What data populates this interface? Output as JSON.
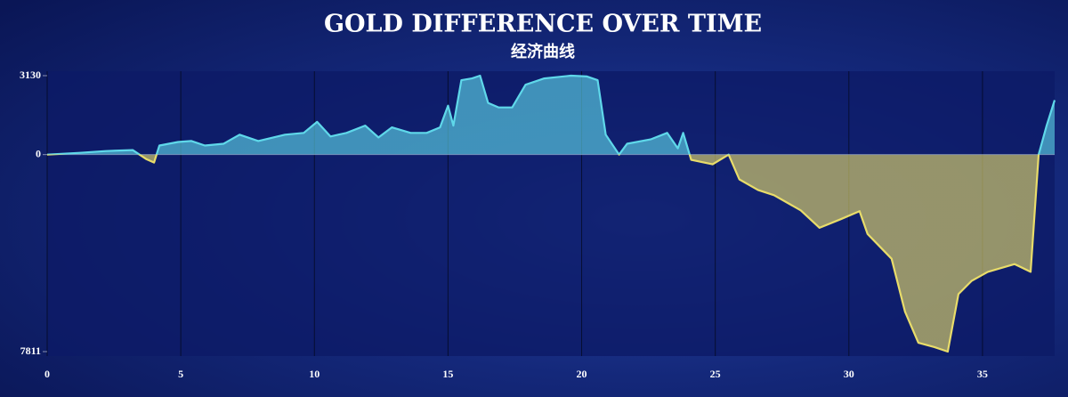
{
  "chart_data": {
    "type": "area",
    "title": "GOLD DIFFERENCE OVER TIME",
    "subtitle": "经济曲线",
    "x": [
      0,
      1.23,
      2.2,
      3.2,
      3.7,
      4.0,
      4.2,
      4.9,
      5.4,
      5.9,
      6.6,
      7.2,
      7.9,
      8.9,
      9.6,
      10.1,
      10.6,
      11.2,
      11.9,
      12.4,
      12.9,
      13.6,
      14.2,
      14.7,
      15.0,
      15.2,
      15.5,
      15.9,
      16.2,
      16.5,
      16.9,
      17.4,
      17.9,
      18.6,
      19.6,
      20.2,
      20.6,
      20.9,
      21.4,
      21.7,
      22.6,
      23.2,
      23.6,
      23.8,
      24.1,
      24.9,
      25.5,
      25.9,
      26.6,
      27.2,
      28.2,
      28.9,
      29.7,
      30.4,
      30.7,
      31.6,
      32.1,
      32.6,
      33.2,
      33.7,
      34.1,
      34.6,
      35.2,
      36.2,
      36.8,
      37.1,
      37.4,
      37.7
    ],
    "values": [
      0,
      70,
      140,
      180,
      -175,
      -315,
      360,
      500,
      540,
      360,
      430,
      790,
      540,
      790,
      860,
      1300,
      720,
      860,
      1150,
      680,
      1080,
      860,
      860,
      1080,
      1940,
      1150,
      2950,
      3020,
      3130,
      2050,
      1870,
      1870,
      2770,
      3020,
      3130,
      3100,
      2950,
      790,
      0,
      430,
      610,
      860,
      250,
      860,
      -210,
      -385,
      0,
      -980,
      -1400,
      -1610,
      -2210,
      -2900,
      -2560,
      -2240,
      -3150,
      -4130,
      -6230,
      -7460,
      -7630,
      -7811,
      -5530,
      -5000,
      -4650,
      -4340,
      -4650,
      0,
      1150,
      2160
    ],
    "positive_color": "#5fd8ea",
    "negative_color": "#e8dc6a",
    "xlim": [
      0,
      37.7
    ],
    "xticks": [
      0,
      5,
      10,
      15,
      20,
      25,
      30,
      35
    ],
    "ylim": [
      -7811,
      3130
    ],
    "yticks": [
      3130,
      0,
      {
        "value": -7811,
        "label": "7811"
      }
    ],
    "grid": true
  }
}
